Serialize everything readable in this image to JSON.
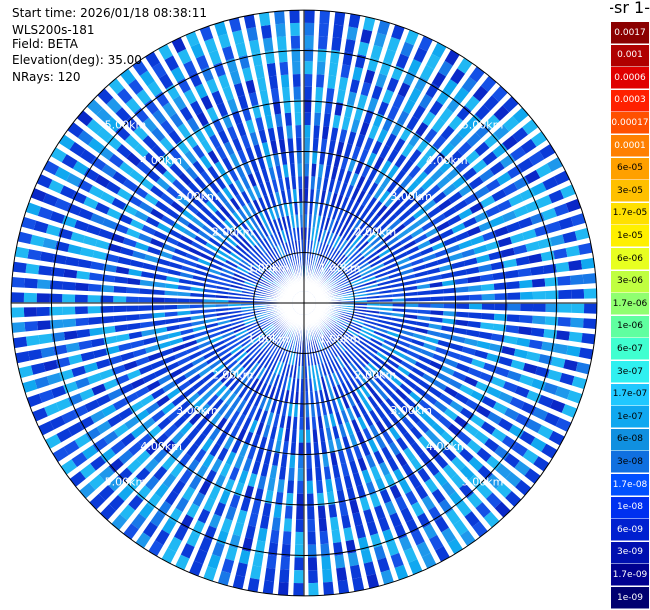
{
  "header": {
    "start_time": "Start time: 2026/01/18 08:38:11",
    "instrument": "WLS200s-181",
    "field": "Field: BETA",
    "elevation": "Elevation(deg): 35.00",
    "nrays": "NRays: 120"
  },
  "colorbar": {
    "title": "-1 sr-",
    "labels": [
      "0.0017",
      "0.001",
      "0.0006",
      "0.0003",
      "0.00017",
      "0.0001",
      "6e-05",
      "3e-05",
      "1.7e-05",
      "1e-05",
      "6e-06",
      "3e-06",
      "1.7e-06",
      "1e-06",
      "6e-07",
      "3e-07",
      "1.7e-07",
      "1e-07",
      "6e-08",
      "3e-08",
      "1.7e-08",
      "1e-08",
      "6e-09",
      "3e-09",
      "1.7e-09",
      "1e-09"
    ],
    "colors": [
      "#8b0000",
      "#b00000",
      "#e00000",
      "#ff2000",
      "#ff5000",
      "#ff8000",
      "#ffa000",
      "#ffc000",
      "#ffe000",
      "#fff000",
      "#e8ff20",
      "#c0ff40",
      "#90ff70",
      "#60ffa0",
      "#40ffd0",
      "#30f0f0",
      "#20c8ff",
      "#10a8f0",
      "#1090e0",
      "#1070e0",
      "#0050ff",
      "#0030f0",
      "#0020d0",
      "#0010b0",
      "#000090",
      "#000070"
    ]
  },
  "chart_data": {
    "type": "heatmap",
    "projection": "polar (PPI)",
    "nrays": 120,
    "range_rings_km": [
      1,
      2,
      3,
      4,
      5
    ],
    "ring_labels": [
      "1.00km",
      "2.00km",
      "3.00km",
      "4.00km",
      "5.00km"
    ],
    "max_range_km": 5.8,
    "dominant_value": "1e-08",
    "colorbar_range": [
      "1e-09",
      "0.0017"
    ]
  }
}
